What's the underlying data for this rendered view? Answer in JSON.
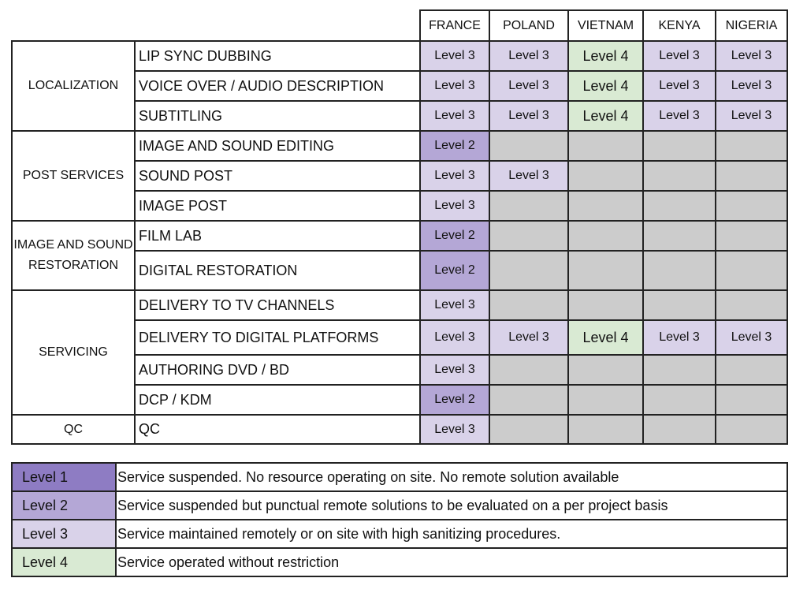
{
  "countries": [
    "FRANCE",
    "POLAND",
    "VIETNAM",
    "KENYA",
    "NIGERIA"
  ],
  "level_colors": {
    "Level 1": "#8e7cc3",
    "Level 2": "#b4a7d6",
    "Level 3": "#d9d2e9",
    "Level 4": "#d9ead3",
    "none": "#cccccc"
  },
  "groups": [
    {
      "category": "LOCALIZATION",
      "rows": [
        {
          "service": "LIP SYNC DUBBING",
          "levels": [
            "Level 3",
            "Level 3",
            "Level 4",
            "Level 3",
            "Level 3"
          ]
        },
        {
          "service": "VOICE OVER / AUDIO DESCRIPTION",
          "levels": [
            "Level 3",
            "Level 3",
            "Level 4",
            "Level 3",
            "Level 3"
          ]
        },
        {
          "service": "SUBTITLING",
          "levels": [
            "Level 3",
            "Level 3",
            "Level 4",
            "Level 3",
            "Level 3"
          ]
        }
      ]
    },
    {
      "category": "POST SERVICES",
      "rows": [
        {
          "service": "IMAGE AND SOUND EDITING",
          "levels": [
            "Level 2",
            null,
            null,
            null,
            null
          ]
        },
        {
          "service": "SOUND POST",
          "levels": [
            "Level 3",
            "Level 3",
            null,
            null,
            null
          ]
        },
        {
          "service": "IMAGE POST",
          "levels": [
            "Level 3",
            null,
            null,
            null,
            null
          ]
        }
      ]
    },
    {
      "category": "IMAGE AND SOUND RESTORATION",
      "rows": [
        {
          "service": "FILM LAB",
          "levels": [
            "Level 2",
            null,
            null,
            null,
            null
          ]
        },
        {
          "service": "DIGITAL RESTORATION",
          "levels": [
            "Level 2",
            null,
            null,
            null,
            null
          ]
        }
      ]
    },
    {
      "category": "SERVICING",
      "rows": [
        {
          "service": "DELIVERY TO TV CHANNELS",
          "levels": [
            "Level 3",
            null,
            null,
            null,
            null
          ]
        },
        {
          "service": "DELIVERY TO DIGITAL PLATFORMS",
          "levels": [
            "Level 3",
            "Level 3",
            "Level 4",
            "Level 3",
            "Level 3"
          ]
        },
        {
          "service": "AUTHORING DVD / BD",
          "levels": [
            "Level 3",
            null,
            null,
            null,
            null
          ]
        },
        {
          "service": "DCP / KDM",
          "levels": [
            "Level 2",
            null,
            null,
            null,
            null
          ]
        }
      ]
    },
    {
      "category": "QC",
      "rows": [
        {
          "service": "QC",
          "levels": [
            "Level 3",
            null,
            null,
            null,
            null
          ]
        }
      ]
    }
  ],
  "legend": [
    {
      "level": "Level 1",
      "description": "Service suspended. No resource operating on site. No remote solution available"
    },
    {
      "level": "Level 2",
      "description": "Service suspended but punctual remote solutions to be evaluated on a per project basis"
    },
    {
      "level": "Level 3",
      "description": "Service maintained remotely or on site with high sanitizing procedures."
    },
    {
      "level": "Level 4",
      "description": "Service operated without restriction"
    }
  ]
}
